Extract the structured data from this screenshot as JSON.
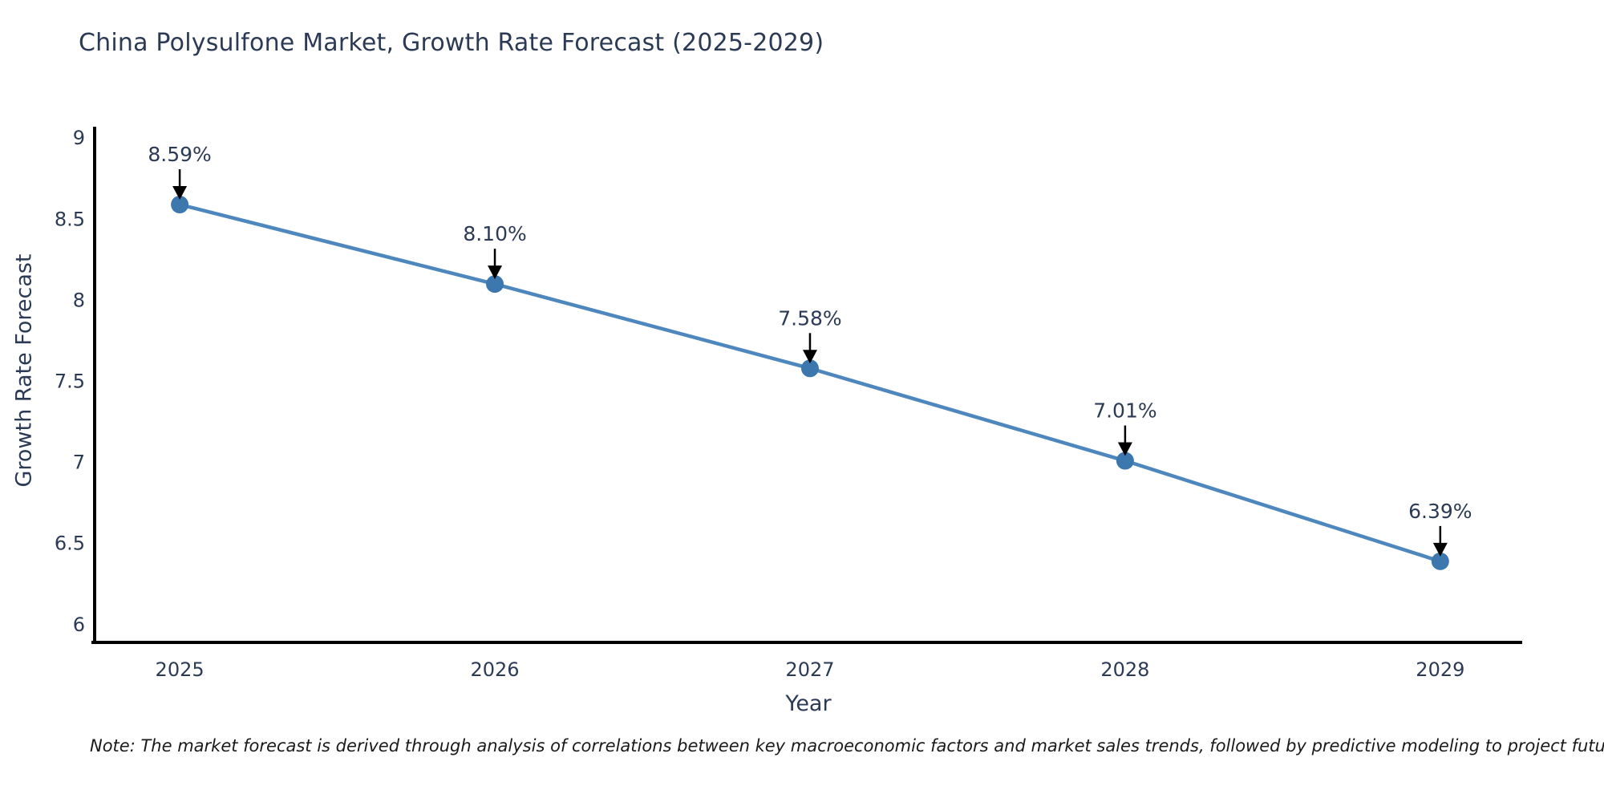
{
  "title": "China Polysulfone Market, Growth Rate Forecast (2025-2029)",
  "note": "Note: The market forecast is derived through analysis of correlations between key macroeconomic factors and market sales trends, followed by predictive modeling to project future sales",
  "colors": {
    "line": "#4d87bd",
    "marker": "#3c77ad",
    "axis": "#000000",
    "tick_text": "#2b3a55",
    "annotation_text": "#2b3a55",
    "arrow": "#000000",
    "background": "#ffffff"
  },
  "chart_data": {
    "type": "line",
    "title": "China Polysulfone Market, Growth Rate Forecast (2025-2029)",
    "xlabel": "Year",
    "ylabel": "Growth Rate Forecast",
    "x": [
      2025,
      2026,
      2027,
      2028,
      2029
    ],
    "values": [
      8.59,
      8.1,
      7.58,
      7.01,
      6.39
    ],
    "point_labels": [
      "8.59%",
      "8.10%",
      "7.58%",
      "7.01%",
      "6.39%"
    ],
    "xtick_labels": [
      "2025",
      "2026",
      "2027",
      "2028",
      "2029"
    ],
    "ytick_values": [
      6,
      6.5,
      7,
      7.5,
      8,
      8.5,
      9
    ],
    "ytick_labels": [
      "6",
      "6.5",
      "7",
      "7.5",
      "8",
      "8.5",
      "9"
    ],
    "xlim": [
      2024.73,
      2029.26
    ],
    "ylim": [
      5.89,
      9.07
    ],
    "grid": false,
    "legend": null,
    "annotations": "value labels with downward arrows above each point"
  }
}
